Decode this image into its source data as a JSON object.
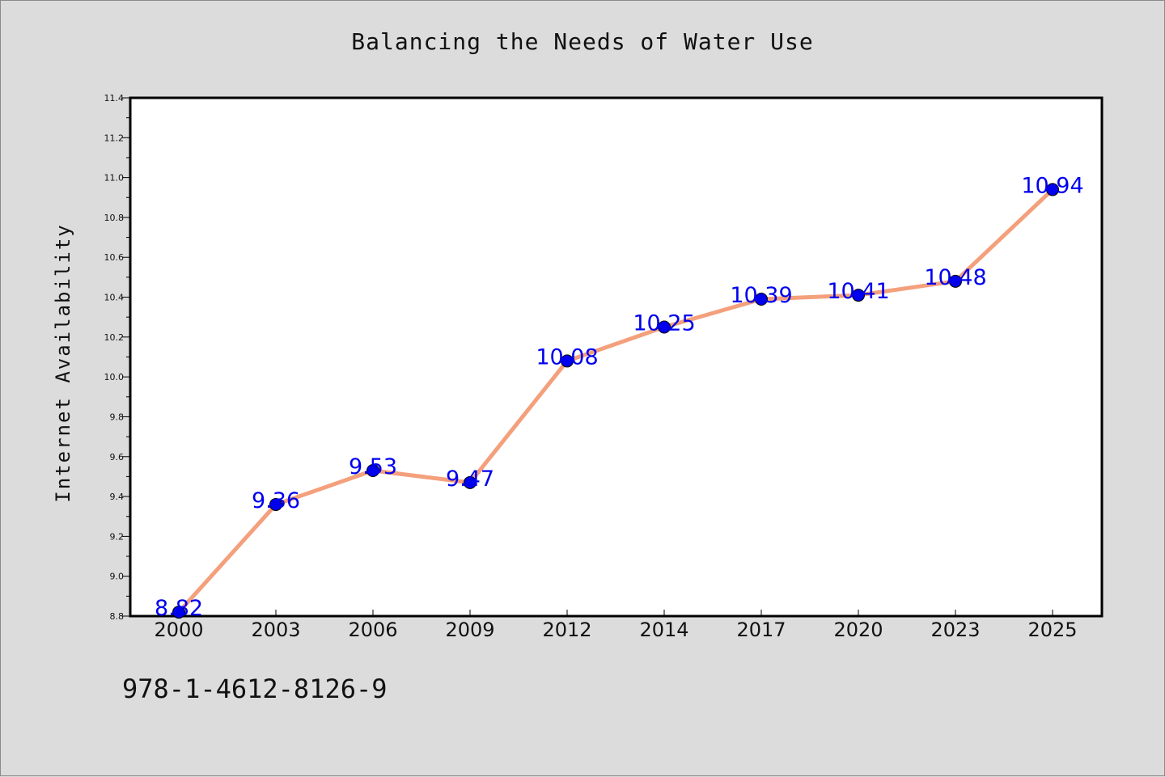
{
  "chart_data": {
    "type": "line",
    "title": "Balancing the Needs of Water Use",
    "xlabel": "",
    "ylabel": "Internet Availability",
    "categories": [
      "2000",
      "2003",
      "2006",
      "2009",
      "2012",
      "2014",
      "2017",
      "2020",
      "2023",
      "2025"
    ],
    "series": [
      {
        "values": [
          8.82,
          9.36,
          9.53,
          9.47,
          10.08,
          10.25,
          10.39,
          10.41,
          10.48,
          10.94
        ],
        "line_color": "#f4a07c",
        "marker_color": "#0000ee"
      }
    ],
    "data_labels": [
      "8.82",
      "9.36",
      "9.53",
      "9.47",
      "10.08",
      "10.25",
      "10.39",
      "10.41",
      "10.48",
      "10.94"
    ],
    "ylim": [
      8.8,
      11.4
    ],
    "yticks": [
      "8.8",
      "9.0",
      "9.2",
      "9.4",
      "9.6",
      "9.8",
      "10.0",
      "10.2",
      "10.4",
      "10.6",
      "10.8",
      "11.0",
      "11.2",
      "11.4"
    ],
    "grid": false,
    "legend": "none"
  },
  "footer": {
    "code": "978-1-4612-8126-9"
  }
}
